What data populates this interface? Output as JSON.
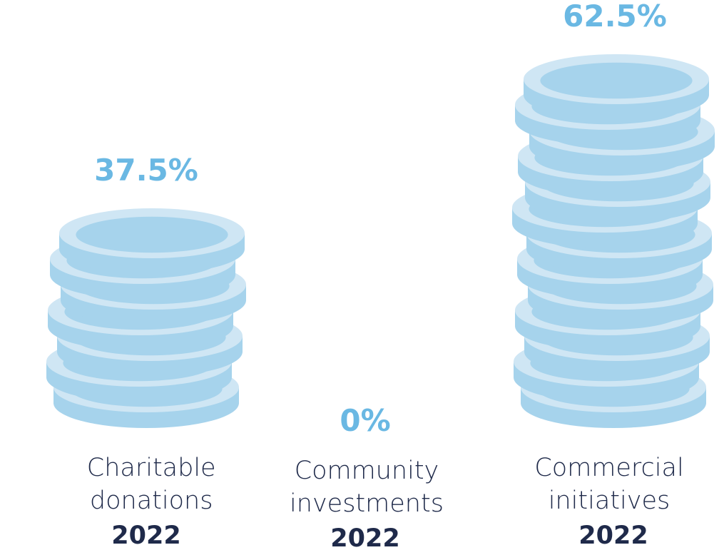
{
  "chart_data": {
    "type": "bar",
    "categories": [
      "Charitable donations",
      "Community investments",
      "Commercial initiatives"
    ],
    "period": "2022",
    "values": [
      37.5,
      0,
      62.5
    ],
    "value_labels": [
      "37.5%",
      "0%",
      "62.5%"
    ],
    "color": "#a6d3ec",
    "label_color": "#6ab8e3"
  }
}
